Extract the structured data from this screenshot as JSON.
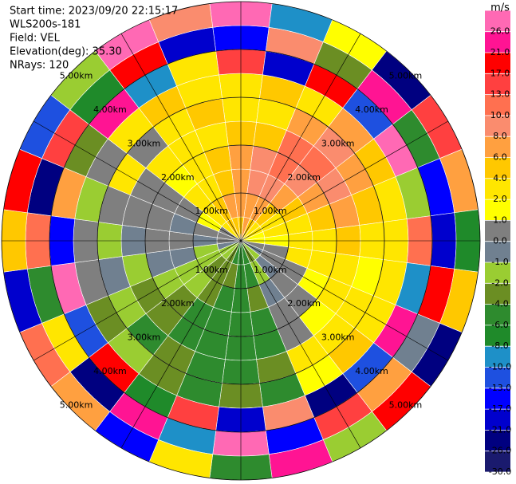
{
  "chart_data": {
    "type": "ppi",
    "info": [
      "Start time: 2023/09/20 22:15:17",
      "WLS200s-181",
      "Field: VEL",
      "Elevation(deg): 35.30",
      "NRays: 120"
    ],
    "colorbar_title": "m/s",
    "colorbar_ticks": [
      {
        "value": -30,
        "label": "-30.0"
      },
      {
        "value": -26,
        "label": "-26.0"
      },
      {
        "value": -21,
        "label": "-21.0"
      },
      {
        "value": -17,
        "label": "-17.0"
      },
      {
        "value": -13,
        "label": "-13.0"
      },
      {
        "value": -10,
        "label": "-10.0"
      },
      {
        "value": -8,
        "label": "-8.0"
      },
      {
        "value": -6,
        "label": "-6.0"
      },
      {
        "value": -4,
        "label": "-4.0"
      },
      {
        "value": -2,
        "label": "-2.0"
      },
      {
        "value": -1,
        "label": "-1.0"
      },
      {
        "value": 0,
        "label": "0.0"
      },
      {
        "value": 1,
        "label": "1.0"
      },
      {
        "value": 2,
        "label": "2.0"
      },
      {
        "value": 4,
        "label": "4.0"
      },
      {
        "value": 6,
        "label": "6.0"
      },
      {
        "value": 8,
        "label": "8.0"
      },
      {
        "value": 10,
        "label": "10.0"
      },
      {
        "value": 13,
        "label": "13.0"
      },
      {
        "value": 17,
        "label": "17.0"
      },
      {
        "value": 21,
        "label": "21.0"
      },
      {
        "value": 26,
        "label": "26.0"
      }
    ],
    "colorbar_colors": [
      "#1a1a6e",
      "#000080",
      "#0000cd",
      "#0000ff",
      "#1e50e0",
      "#1e90c8",
      "#1f8a2a",
      "#2e8b2e",
      "#6b8e23",
      "#9acd32",
      "#708090",
      "#7f7f7f",
      "#ffff00",
      "#ffe600",
      "#ffc800",
      "#ffa040",
      "#fa8c6e",
      "#ff7050",
      "#ff4040",
      "#ff0000",
      "#ff1493",
      "#ff69b4"
    ],
    "rlim": [
      0,
      5
    ],
    "rings": [
      {
        "value": 1,
        "label": "1.00km"
      },
      {
        "value": 2,
        "label": "2.00km"
      },
      {
        "value": 3,
        "label": "3.00km"
      },
      {
        "value": 4,
        "label": "4.00km"
      },
      {
        "value": 5,
        "label": "5.00km"
      }
    ],
    "gates": [
      [
        4,
        6,
        6,
        6,
        4,
        2,
        2,
        13,
        -17,
        26
      ],
      [
        6,
        6,
        8,
        8,
        4,
        2,
        4,
        -21,
        8,
        -10
      ],
      [
        4,
        6,
        8,
        10,
        10,
        6,
        2,
        17,
        -4,
        1
      ],
      [
        2,
        4,
        6,
        8,
        10,
        8,
        6,
        -13,
        21,
        -26
      ],
      [
        2,
        2,
        4,
        6,
        8,
        6,
        4,
        26,
        -6,
        13
      ],
      [
        1,
        2,
        2,
        4,
        6,
        4,
        2,
        -2,
        -17,
        6
      ],
      [
        1,
        1,
        2,
        2,
        4,
        2,
        2,
        10,
        -21,
        -8
      ],
      [
        0,
        0,
        2,
        2,
        2,
        1,
        2,
        -10,
        17,
        4
      ],
      [
        -1,
        0,
        0,
        1,
        2,
        2,
        2,
        21,
        -1,
        -26
      ],
      [
        -2,
        -1,
        0,
        0,
        1,
        2,
        4,
        -13,
        6,
        17
      ],
      [
        -4,
        -2,
        -1,
        0,
        0,
        2,
        1,
        -26,
        13,
        -2
      ],
      [
        -6,
        -6,
        -4,
        -6,
        -6,
        -4,
        -6,
        8,
        -17,
        21
      ],
      [
        -6,
        -6,
        -6,
        -6,
        -6,
        -6,
        -4,
        -21,
        26,
        -6
      ],
      [
        -6,
        -4,
        -6,
        -6,
        -6,
        -6,
        -6,
        13,
        -10,
        2
      ],
      [
        -4,
        -4,
        -4,
        -6,
        -6,
        -4,
        -4,
        -8,
        21,
        -17
      ],
      [
        -2,
        -4,
        -2,
        -4,
        -4,
        -6,
        -2,
        17,
        -26,
        6
      ],
      [
        -2,
        -2,
        -2,
        -2,
        -4,
        -2,
        -4,
        -13,
        2,
        10
      ],
      [
        -1,
        -2,
        -1,
        -1,
        -2,
        -1,
        0,
        26,
        -6,
        -21
      ],
      [
        0,
        -1,
        0,
        0,
        -1,
        -2,
        0,
        -17,
        10,
        4
      ],
      [
        0,
        0,
        -1,
        0,
        0,
        0,
        -2,
        6,
        -26,
        17
      ],
      [
        0,
        1,
        0,
        0,
        0,
        2,
        0,
        -4,
        13,
        -13
      ],
      [
        2,
        2,
        2,
        1,
        2,
        0,
        2,
        21,
        -8,
        -2
      ],
      [
        4,
        4,
        2,
        2,
        2,
        2,
        4,
        -10,
        17,
        26
      ],
      [
        4,
        6,
        4,
        4,
        2,
        4,
        2,
        2,
        -21,
        8
      ]
    ]
  }
}
